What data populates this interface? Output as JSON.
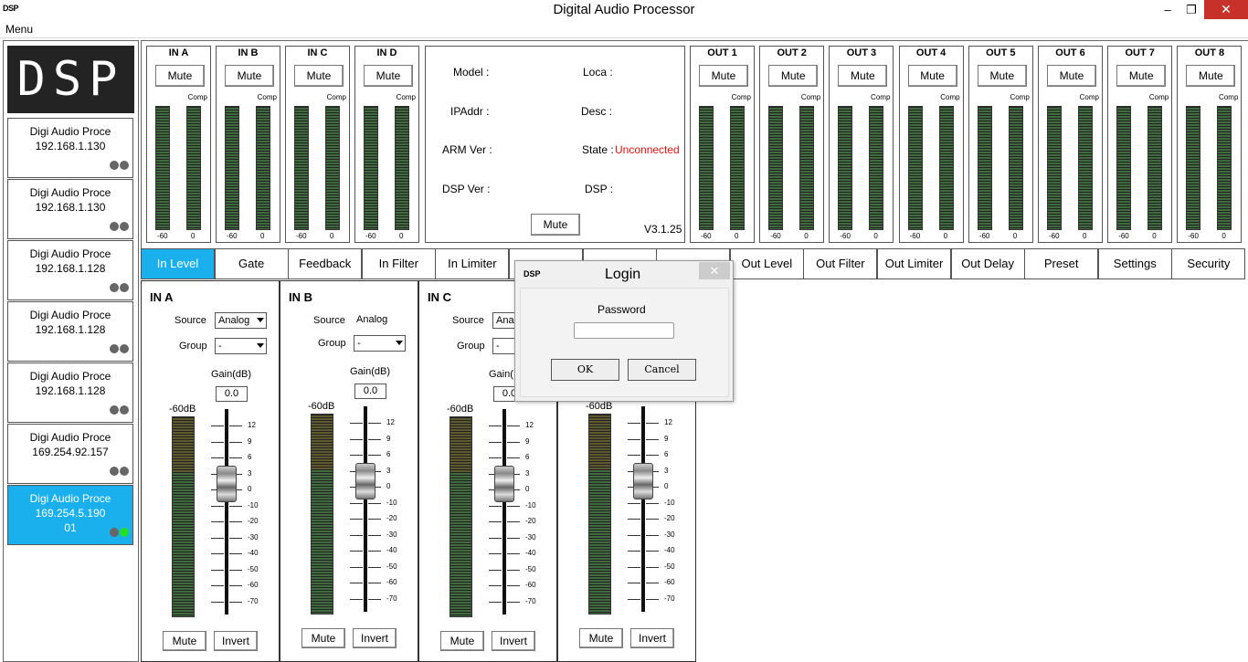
{
  "window": {
    "icon_text": "DSP",
    "title": "Digital Audio Processor",
    "minimize": "–",
    "maximize": "❐",
    "close": "✕"
  },
  "menu": {
    "label": "Menu"
  },
  "logo": "DSP",
  "devices": [
    {
      "name": "Digi Audio Proce",
      "ip": "192.168.1.130",
      "extra": "",
      "online": false
    },
    {
      "name": "Digi Audio Proce",
      "ip": "192.168.1.130",
      "extra": "",
      "online": false
    },
    {
      "name": "Digi Audio Proce",
      "ip": "192.168.1.128",
      "extra": "",
      "online": false
    },
    {
      "name": "Digi Audio Proce",
      "ip": "192.168.1.128",
      "extra": "",
      "online": false
    },
    {
      "name": "Digi Audio Proce",
      "ip": "192.168.1.128",
      "extra": "",
      "online": false
    },
    {
      "name": "Digi Audio Proce",
      "ip": "169.254.92.157",
      "extra": "",
      "online": false
    },
    {
      "name": "Digi Audio Proce",
      "ip": "169.254.5.190",
      "extra": "01",
      "online": true
    }
  ],
  "inputs": [
    {
      "name": "IN A",
      "mute": "Mute",
      "comp": "Comp",
      "min": "-60",
      "max": "0"
    },
    {
      "name": "IN B",
      "mute": "Mute",
      "comp": "Comp",
      "min": "-60",
      "max": "0"
    },
    {
      "name": "IN C",
      "mute": "Mute",
      "comp": "Comp",
      "min": "-60",
      "max": "0"
    },
    {
      "name": "IN D",
      "mute": "Mute",
      "comp": "Comp",
      "min": "-60",
      "max": "0"
    }
  ],
  "outputs": [
    {
      "name": "OUT 1",
      "mute": "Mute",
      "comp": "Comp",
      "min": "-60",
      "max": "0"
    },
    {
      "name": "OUT 2",
      "mute": "Mute",
      "comp": "Comp",
      "min": "-60",
      "max": "0"
    },
    {
      "name": "OUT 3",
      "mute": "Mute",
      "comp": "Comp",
      "min": "-60",
      "max": "0"
    },
    {
      "name": "OUT 4",
      "mute": "Mute",
      "comp": "Comp",
      "min": "-60",
      "max": "0"
    },
    {
      "name": "OUT 5",
      "mute": "Mute",
      "comp": "Comp",
      "min": "-60",
      "max": "0"
    },
    {
      "name": "OUT 6",
      "mute": "Mute",
      "comp": "Comp",
      "min": "-60",
      "max": "0"
    },
    {
      "name": "OUT 7",
      "mute": "Mute",
      "comp": "Comp",
      "min": "-60",
      "max": "0"
    },
    {
      "name": "OUT 8",
      "mute": "Mute",
      "comp": "Comp",
      "min": "-60",
      "max": "0"
    }
  ],
  "info": {
    "model": "Model :",
    "loca": "Loca :",
    "ipaddr": "IPAddr :",
    "desc": "Desc :",
    "arm": "ARM Ver :",
    "state": "State :",
    "state_value": "Unconnected",
    "dspver": "DSP Ver :",
    "dsp": "DSP :",
    "mute": "Mute",
    "version": "V3.1.25"
  },
  "tabs": [
    "In Level",
    "Gate",
    "Feedback",
    "In Filter",
    "In Limiter",
    "",
    "",
    "",
    "Out Level",
    "Out Filter",
    "Out Limiter",
    "Out Delay",
    "Preset",
    "Settings",
    "Security"
  ],
  "levels": [
    {
      "name": "IN A",
      "source_label": "Source",
      "source": "Analog",
      "group_label": "Group",
      "group": "-",
      "gain_label": "Gain(dB)",
      "gain": "0.0",
      "db": "-60dB",
      "mute": "Mute",
      "invert": "Invert"
    },
    {
      "name": "IN B",
      "source_label": "Source",
      "source": "Analog",
      "group_label": "Group",
      "group": "-",
      "gain_label": "Gain(dB)",
      "gain": "0.0",
      "db": "-60dB",
      "mute": "Mute",
      "invert": "Invert"
    },
    {
      "name": "IN C",
      "source_label": "Source",
      "source": "Ana",
      "group_label": "Group",
      "group": "-",
      "gain_label": "Gain(",
      "gain": "0.0",
      "db": "-60dB",
      "mute": "Mute",
      "invert": "Invert"
    },
    {
      "name": "",
      "source_label": "",
      "source": "",
      "group_label": "",
      "group": "",
      "gain_label": "",
      "gain": "",
      "db": "-60dB",
      "mute": "Mute",
      "invert": "Invert"
    }
  ],
  "fader_scale": [
    "12",
    "9",
    "6",
    "3",
    "0",
    "-10",
    "-20",
    "-30",
    "-40",
    "-50",
    "-60",
    "-70"
  ],
  "login": {
    "logo": "DSP",
    "title": "Login",
    "close": "✕",
    "password_label": "Password",
    "ok": "OK",
    "cancel": "Cancel"
  }
}
